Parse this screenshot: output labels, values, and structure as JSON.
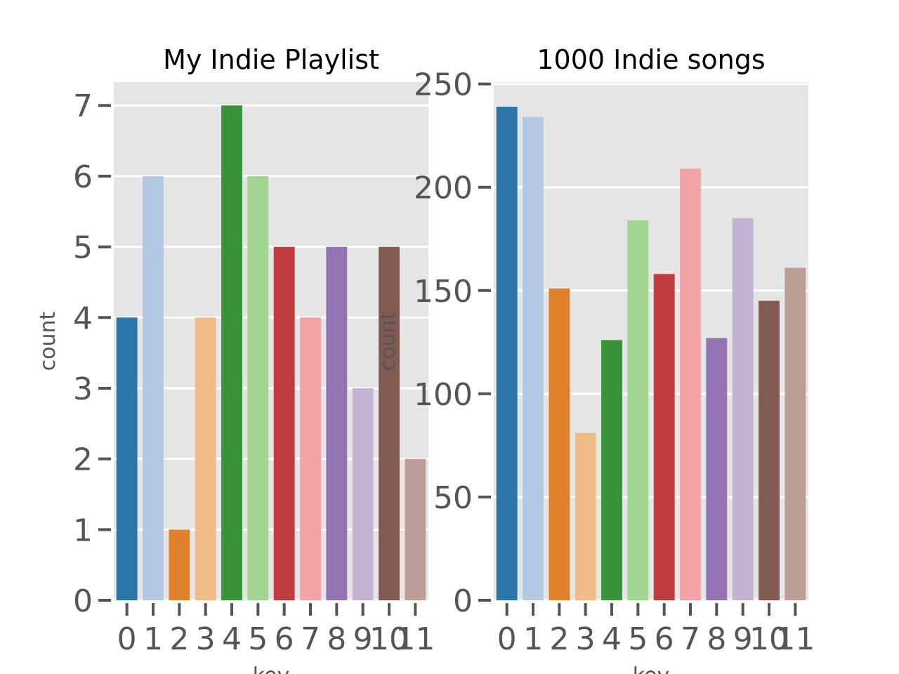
{
  "chart_data": [
    {
      "type": "bar",
      "title": "My Indie Playlist",
      "xlabel": "key",
      "ylabel": "count",
      "categories": [
        "0",
        "1",
        "2",
        "3",
        "4",
        "5",
        "6",
        "7",
        "8",
        "9",
        "10",
        "11"
      ],
      "values": [
        4,
        6,
        1,
        4,
        7,
        6,
        5,
        4,
        5,
        3,
        5,
        2
      ],
      "ylim": [
        0,
        7.33
      ],
      "yticks": [
        "0",
        "1",
        "2",
        "3",
        "4",
        "5",
        "6",
        "7"
      ],
      "grid": true
    },
    {
      "type": "bar",
      "title": "1000 Indie songs",
      "xlabel": "key",
      "ylabel": "count",
      "categories": [
        "0",
        "1",
        "2",
        "3",
        "4",
        "5",
        "6",
        "7",
        "8",
        "9",
        "10",
        "11"
      ],
      "values": [
        239,
        234,
        151,
        81,
        126,
        184,
        158,
        209,
        127,
        185,
        145,
        161
      ],
      "ylim": [
        0,
        250.9
      ],
      "yticks": [
        "0",
        "50",
        "100",
        "150",
        "200",
        "250"
      ],
      "grid": true
    }
  ],
  "colors": {
    "bars": [
      "#2e75a8",
      "#b3c8e3",
      "#e2812b",
      "#f0bb86",
      "#3a923a",
      "#a0d592",
      "#c03b3d",
      "#f2a4a4",
      "#9373b3",
      "#c4b3d3",
      "#835a51",
      "#bd9e96"
    ],
    "background": "#e5e5e5",
    "grid": "#ffffff",
    "ticks": "#555555"
  }
}
